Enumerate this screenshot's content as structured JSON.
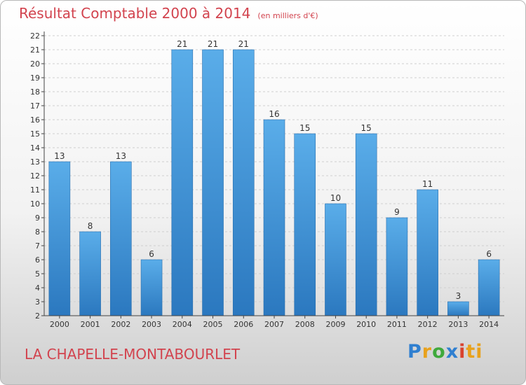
{
  "header": {
    "title": "Résultat Comptable 2000 à 2014",
    "unit": "(en milliers d'€)"
  },
  "footer": {
    "town": "LA CHAPELLE-MONTABOURLET",
    "brand": "Proxiti",
    "brand_letters": [
      "P",
      "r",
      "o",
      "x",
      "i",
      "ti"
    ]
  },
  "colors": {
    "title": "#d2434e",
    "bar_top": "#5aade9",
    "bar_bottom": "#2b78bf",
    "grid": "#cfcfcf",
    "axis": "#444444"
  },
  "chart_data": {
    "type": "bar",
    "title": "Résultat Comptable 2000 à 2014",
    "xlabel": "",
    "ylabel": "",
    "ylim": [
      2,
      22
    ],
    "yticks": [
      2,
      3,
      4,
      5,
      6,
      7,
      8,
      9,
      10,
      11,
      12,
      13,
      14,
      15,
      16,
      17,
      18,
      19,
      20,
      21,
      22
    ],
    "grid": "horizontal-dashed",
    "categories": [
      "2000",
      "2001",
      "2002",
      "2003",
      "2004",
      "2005",
      "2006",
      "2007",
      "2008",
      "2009",
      "2010",
      "2011",
      "2012",
      "2013",
      "2014"
    ],
    "values": [
      13,
      8,
      13,
      6,
      21,
      21,
      21,
      16,
      15,
      10,
      15,
      9,
      11,
      3,
      6
    ]
  }
}
